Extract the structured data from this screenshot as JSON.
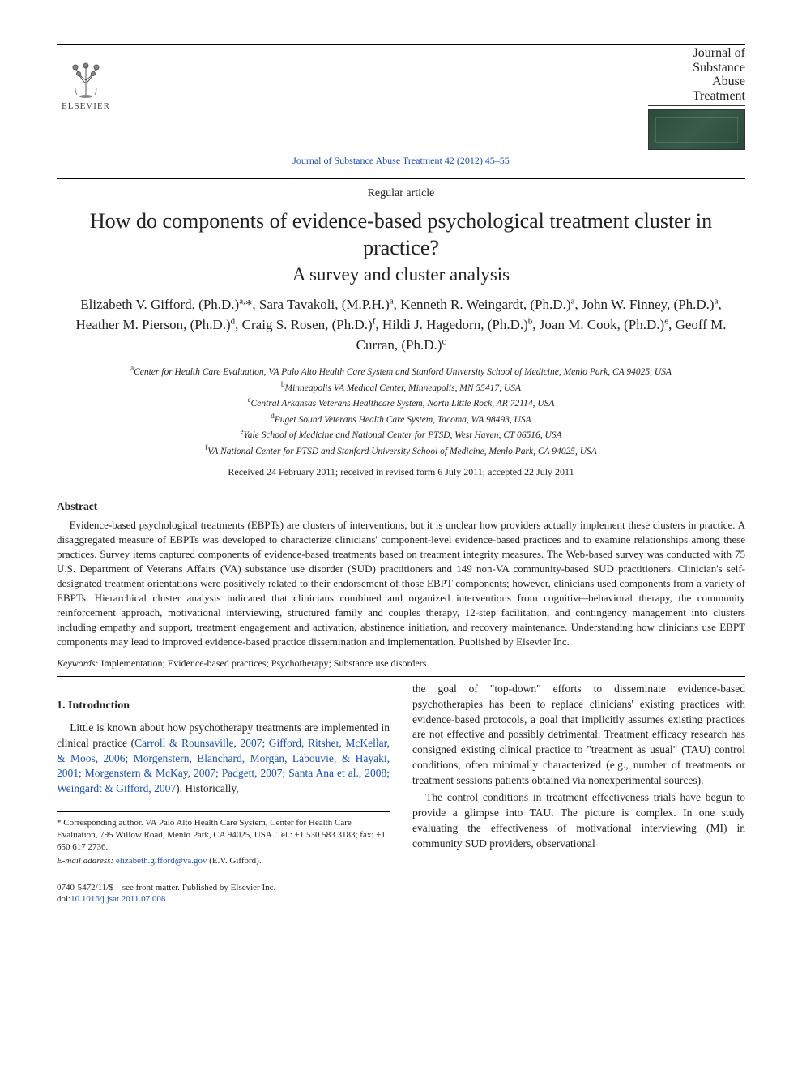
{
  "header": {
    "publisher": "ELSEVIER",
    "citation": "Journal of Substance Abuse Treatment 42 (2012) 45–55",
    "journal_logo_lines": [
      "Journal of",
      "Substance",
      "Abuse",
      "Treatment"
    ]
  },
  "article": {
    "type": "Regular article",
    "title": "How do components of evidence-based psychological treatment cluster in practice?",
    "subtitle": "A survey and cluster analysis",
    "authors_html": "Elizabeth V. Gifford, (Ph.D.)<sup>a,</sup>*, Sara Tavakoli, (M.P.H.)<sup>a</sup>, Kenneth R. Weingardt, (Ph.D.)<sup>a</sup>, John W. Finney, (Ph.D.)<sup>a</sup>, Heather M. Pierson, (Ph.D.)<sup>d</sup>, Craig S. Rosen, (Ph.D.)<sup>f</sup>, Hildi J. Hagedorn, (Ph.D.)<sup>b</sup>, Joan M. Cook, (Ph.D.)<sup>e</sup>, Geoff M. Curran, (Ph.D.)<sup>c</sup>",
    "affiliations": [
      "<sup>a</sup>Center for Health Care Evaluation, VA Palo Alto Health Care System and Stanford University School of Medicine, Menlo Park, CA 94025, USA",
      "<sup>b</sup>Minneapolis VA Medical Center, Minneapolis, MN 55417, USA",
      "<sup>c</sup>Central Arkansas Veterans Healthcare System, North Little Rock, AR 72114, USA",
      "<sup>d</sup>Puget Sound Veterans Health Care System, Tacoma, WA 98493, USA",
      "<sup>e</sup>Yale School of Medicine and National Center for PTSD, West Haven, CT 06516, USA",
      "<sup>f</sup>VA National Center for PTSD and Stanford University School of Medicine, Menlo Park, CA 94025, USA"
    ],
    "dates": "Received 24 February 2011; received in revised form 6 July 2011; accepted 22 July 2011"
  },
  "abstract": {
    "heading": "Abstract",
    "body": "Evidence-based psychological treatments (EBPTs) are clusters of interventions, but it is unclear how providers actually implement these clusters in practice. A disaggregated measure of EBPTs was developed to characterize clinicians' component-level evidence-based practices and to examine relationships among these practices. Survey items captured components of evidence-based treatments based on treatment integrity measures. The Web-based survey was conducted with 75 U.S. Department of Veterans Affairs (VA) substance use disorder (SUD) practitioners and 149 non-VA community-based SUD practitioners. Clinician's self-designated treatment orientations were positively related to their endorsement of those EBPT components; however, clinicians used components from a variety of EBPTs. Hierarchical cluster analysis indicated that clinicians combined and organized interventions from cognitive–behavioral therapy, the community reinforcement approach, motivational interviewing, structured family and couples therapy, 12-step facilitation, and contingency management into clusters including empathy and support, treatment engagement and activation, abstinence initiation, and recovery maintenance. Understanding how clinicians use EBPT components may lead to improved evidence-based practice dissemination and implementation. Published by Elsevier Inc.",
    "keywords_label": "Keywords:",
    "keywords": "Implementation; Evidence-based practices; Psychotherapy; Substance use disorders"
  },
  "body": {
    "section_heading": "1. Introduction",
    "para1_pre": "Little is known about how psychotherapy treatments are implemented in clinical practice (",
    "para1_link": "Carroll & Rounsaville, 2007; Gifford, Ritsher, McKellar, & Moos, 2006; Morgenstern, Blanchard, Morgan, Labouvie, & Hayaki, 2001; Morgenstern & McKay, 2007; Padgett, 2007; Santa Ana et al., 2008; Weingardt & Gifford, 2007",
    "para1_post": "). Historically,",
    "para2": "the goal of \"top-down\" efforts to disseminate evidence-based psychotherapies has been to replace clinicians' existing practices with evidence-based protocols, a goal that implicitly assumes existing practices are not effective and possibly detrimental. Treatment efficacy research has consigned existing clinical practice to \"treatment as usual\" (TAU) control conditions, often minimally characterized (e.g., number of treatments or treatment sessions patients obtained via nonexperimental sources).",
    "para3": "The control conditions in treatment effectiveness trials have begun to provide a glimpse into TAU. The picture is complex. In one study evaluating the effectiveness of motivational interviewing (MI) in community SUD providers, observational"
  },
  "footnotes": {
    "corr": "* Corresponding author. VA Palo Alto Health Care System, Center for Health Care Evaluation, 795 Willow Road, Menlo Park, CA 94025, USA. Tel.: +1 530 583 3183; fax: +1 650 617 2736.",
    "email_label": "E-mail address:",
    "email": "elizabeth.gifford@va.gov",
    "email_attrib": "(E.V. Gifford)."
  },
  "bottom": {
    "copyright": "0740-5472/11/$ – see front matter. Published by Elsevier Inc.",
    "doi_label": "doi:",
    "doi": "10.1016/j.jsat.2011.07.008"
  },
  "colors": {
    "link": "#1a4fb3",
    "text": "#222222",
    "rule": "#000000"
  },
  "typography": {
    "body_font": "Times New Roman",
    "title_pt": 26,
    "subtitle_pt": 23,
    "authors_pt": 17,
    "body_pt": 13.5,
    "abstract_pt": 13,
    "footnote_pt": 11
  }
}
